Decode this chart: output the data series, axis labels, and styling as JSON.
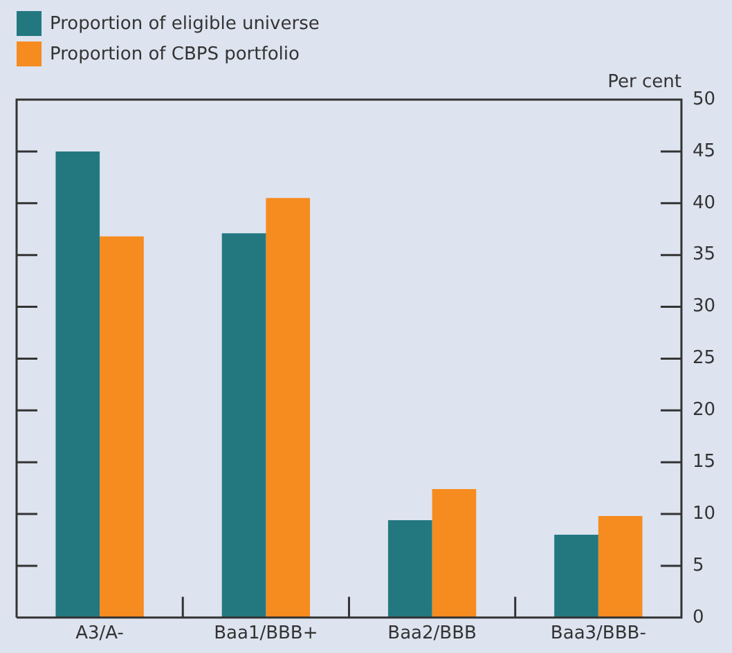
{
  "chart_data": {
    "type": "bar",
    "ylabel": "Per cent",
    "categories": [
      "A3/A-",
      "Baa1/BBB+",
      "Baa2/BBB",
      "Baa3/BBB-"
    ],
    "series": [
      {
        "name": "Proportion of eligible universe",
        "color": "#237880",
        "values": [
          45,
          37.1,
          9.4,
          8
        ]
      },
      {
        "name": "Proportion of CBPS portfolio",
        "color": "#f68b1f",
        "values": [
          36.8,
          40.5,
          12.4,
          9.8
        ]
      }
    ],
    "ylim": [
      0,
      50
    ],
    "yticks": [
      0,
      5,
      10,
      15,
      20,
      25,
      30,
      35,
      40,
      45,
      50
    ],
    "grid": false,
    "legend": "top left"
  }
}
